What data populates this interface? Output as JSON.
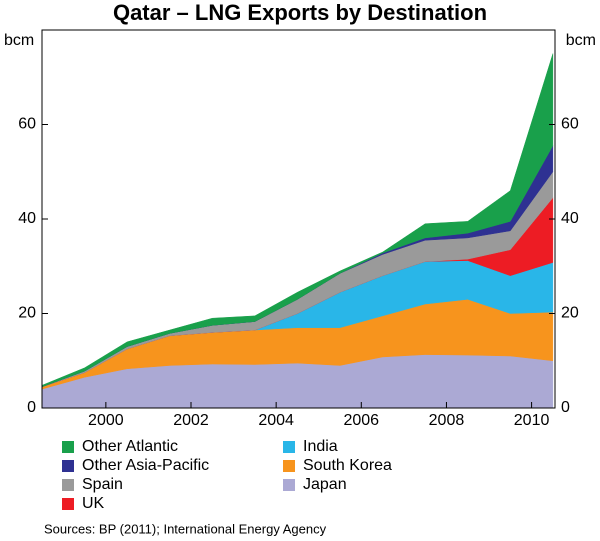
{
  "chart_data": {
    "type": "stacked_area",
    "title": "Qatar – LNG Exports by Destination",
    "y_unit": "bcm",
    "source": "Sources: BP (2011); International Energy Agency",
    "x": [
      1998.5,
      1999.5,
      2000.5,
      2001.5,
      2002.5,
      2003.5,
      2004.5,
      2005.5,
      2006.5,
      2007.5,
      2008.5,
      2009.5,
      2010.5
    ],
    "xlim": [
      1998.5,
      2010.55
    ],
    "xticks": [
      2000,
      2002,
      2004,
      2006,
      2008,
      2010
    ],
    "ylim": [
      0,
      80
    ],
    "yticks": [
      0,
      20,
      40,
      60
    ],
    "series": [
      {
        "name": "Other Atlantic",
        "color": "#19a04b",
        "values": [
          0.3,
          0.7,
          1,
          0.7,
          1.5,
          1.2,
          1.5,
          0.5,
          0.2,
          3,
          2.5,
          6.5,
          19.5
        ]
      },
      {
        "name": "Other Asia-Pacific",
        "color": "#2e3192",
        "values": [
          0,
          0,
          0,
          0,
          0,
          0,
          0,
          0,
          0.3,
          0.5,
          1,
          2,
          5.5
        ]
      },
      {
        "name": "Spain",
        "color": "#9a9a9a",
        "values": [
          0,
          0.3,
          0.5,
          0.5,
          1.5,
          1.8,
          3,
          4,
          4.5,
          4.5,
          4.5,
          4,
          5.5
        ]
      },
      {
        "name": "UK",
        "color": "#ed1c24",
        "values": [
          0,
          0,
          0,
          0,
          0,
          0,
          0,
          0,
          0,
          0,
          0.3,
          5.5,
          13.7
        ]
      },
      {
        "name": "India",
        "color": "#29b6e8",
        "values": [
          0,
          0,
          0,
          0,
          0,
          0,
          3,
          7.5,
          8.5,
          9,
          8.2,
          8,
          10.5
        ]
      },
      {
        "name": "South Korea",
        "color": "#f7941d",
        "values": [
          0.5,
          1,
          4.2,
          6.3,
          6.7,
          7.3,
          7.5,
          8,
          8.7,
          10.7,
          11.8,
          9,
          10.3
        ]
      },
      {
        "name": "Japan",
        "color": "#aba9d4",
        "values": [
          4,
          6.5,
          8.3,
          9,
          9.3,
          9.2,
          9.5,
          9,
          10.8,
          11.3,
          11.2,
          11,
          10
        ]
      }
    ]
  }
}
